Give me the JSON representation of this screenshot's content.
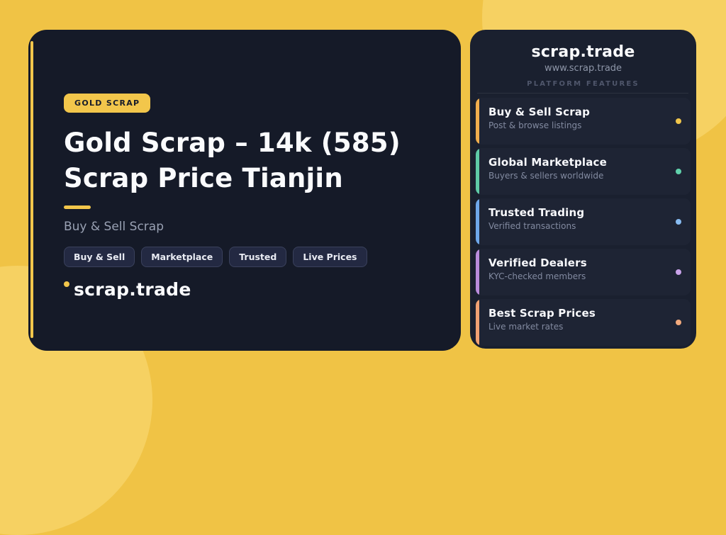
{
  "theme": {
    "background": "#F0C345",
    "background_highlight": "#F8D56C",
    "card_dark": "#151A28",
    "accent_yellow": "#F2C64B"
  },
  "hero": {
    "badge": "GOLD SCRAP",
    "title_lines": [
      "Gold Scrap – 14k (585)",
      "Scrap Price Tianjin"
    ],
    "subtitle": "Buy & Sell Scrap",
    "tags": [
      "Buy & Sell",
      "Marketplace",
      "Trusted",
      "Live Prices"
    ],
    "brand": "scrap.trade"
  },
  "panel": {
    "brand": "scrap.trade",
    "website": "www.scrap.trade",
    "section_label": "PLATFORM FEATURES",
    "features": [
      {
        "title": "Buy & Sell Scrap",
        "subtitle": "Post & browse listings",
        "accent": "#F0AE4D",
        "dot": "#F1C64B"
      },
      {
        "title": "Global Marketplace",
        "subtitle": "Buyers & sellers worldwide",
        "accent": "#5FCBA7",
        "dot": "#61D2AC"
      },
      {
        "title": "Trusted Trading",
        "subtitle": "Verified transactions",
        "accent": "#6FA8EA",
        "dot": "#88BCF2"
      },
      {
        "title": "Verified Dealers",
        "subtitle": "KYC-checked members",
        "accent": "#BA8CDC",
        "dot": "#C9A3EA"
      },
      {
        "title": "Best Scrap Prices",
        "subtitle": "Live market rates",
        "accent": "#F1A172",
        "dot": "#F2AA7D"
      }
    ]
  }
}
